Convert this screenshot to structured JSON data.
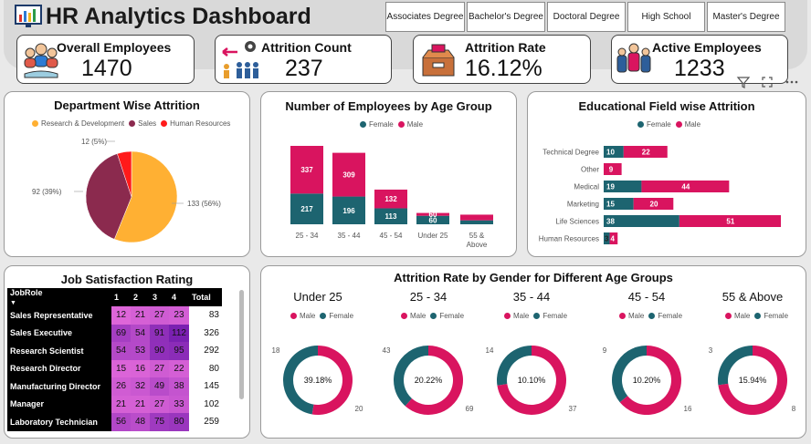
{
  "header": {
    "title": "HR Analytics Dashboard",
    "education_filters": [
      "Associates Degree",
      "Bachelor's Degree",
      "Doctoral Degree",
      "High School",
      "Master's Degree"
    ]
  },
  "kpis": {
    "overall_employees": {
      "label": "Overall Employees",
      "value": "1470"
    },
    "attrition_count": {
      "label": "Attrition Count",
      "value": "237"
    },
    "attrition_rate": {
      "label": "Attrition Rate",
      "value": "16.12%"
    },
    "active_employees": {
      "label": "Active Employees",
      "value": "1233"
    }
  },
  "colors": {
    "orange": "#ffb033",
    "maroon": "#8b2a4e",
    "red": "#ff1a1a",
    "teal": "#1d6470",
    "pink": "#d9145f"
  },
  "chart_data": [
    {
      "type": "pie",
      "title": "Department Wise Attrition",
      "labels": [
        "Research & Development",
        "Sales",
        "Human Resources"
      ],
      "values": [
        133,
        92,
        12
      ],
      "data_labels": [
        "133 (56%)",
        "92 (39%)",
        "12 (5%)"
      ]
    },
    {
      "type": "bar",
      "stacked": true,
      "title": "Number of Employees by Age Group",
      "categories": [
        "25 - 34",
        "35 - 44",
        "45 - 54",
        "Under 25",
        "55 & Above"
      ],
      "series": [
        {
          "name": "Female",
          "values": [
            217,
            196,
            113,
            60,
            0
          ]
        },
        {
          "name": "Male",
          "values": [
            337,
            309,
            132,
            0,
            0
          ]
        }
      ],
      "data_labels": {
        "female": [
          "217",
          "196",
          "113",
          "60",
          ""
        ],
        "male": [
          "337",
          "309",
          "132",
          "",
          ""
        ]
      }
    },
    {
      "type": "bar",
      "orientation": "horizontal",
      "stacked": true,
      "title": "Educational Field wise Attrition",
      "categories": [
        "Technical Degree",
        "Other",
        "Medical",
        "Marketing",
        "Life Sciences",
        "Human Resources"
      ],
      "series": [
        {
          "name": "Female",
          "values": [
            10,
            0,
            19,
            15,
            38,
            3
          ]
        },
        {
          "name": "Male",
          "values": [
            22,
            9,
            44,
            20,
            51,
            4
          ]
        }
      ]
    },
    {
      "type": "table",
      "title": "Job Satisfaction Rating",
      "columns": [
        "JobRole",
        "1",
        "2",
        "3",
        "4",
        "Total"
      ],
      "rows": [
        [
          "Sales Representative",
          12,
          21,
          27,
          23,
          83
        ],
        [
          "Sales Executive",
          69,
          54,
          91,
          112,
          326
        ],
        [
          "Research Scientist",
          54,
          53,
          90,
          95,
          292
        ],
        [
          "Research Director",
          15,
          16,
          27,
          22,
          80
        ],
        [
          "Manufacturing Director",
          26,
          32,
          49,
          38,
          145
        ],
        [
          "Manager",
          21,
          21,
          27,
          33,
          102
        ],
        [
          "Laboratory Technician",
          56,
          48,
          75,
          80,
          259
        ]
      ]
    },
    {
      "type": "pie",
      "donut": true,
      "title": "Attrition Rate by Gender for Different Age Groups",
      "groups": [
        {
          "name": "Under 25",
          "center_label": "39.18%",
          "male": 20,
          "female": 18
        },
        {
          "name": "25 - 34",
          "center_label": "20.22%",
          "male": 69,
          "female": 43
        },
        {
          "name": "35 - 44",
          "center_label": "10.10%",
          "male": 37,
          "female": 14
        },
        {
          "name": "45 - 54",
          "center_label": "10.20%",
          "male": 16,
          "female": 9
        },
        {
          "name": "55 & Above",
          "center_label": "15.94%",
          "male": 8,
          "female": 3
        }
      ]
    }
  ],
  "legend_text": {
    "female": "Female",
    "male": "Male",
    "rnd": "Research & Development",
    "sales": "Sales",
    "hr": "Human Resources"
  }
}
